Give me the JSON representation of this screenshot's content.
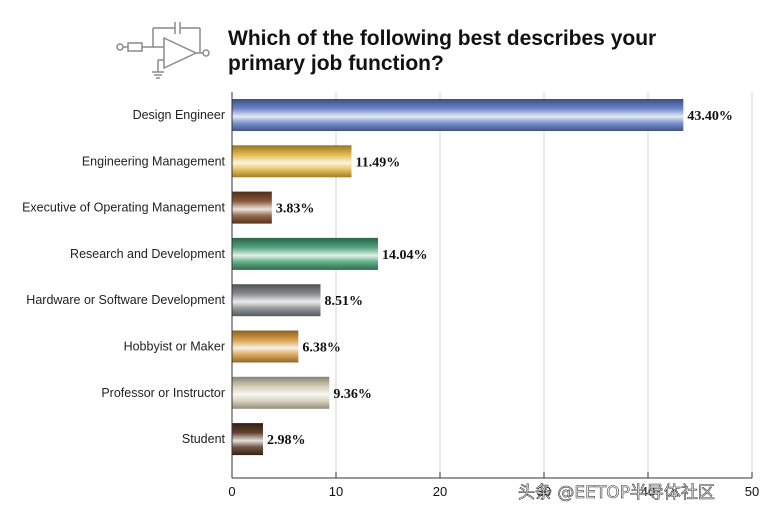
{
  "chart_data": {
    "type": "bar",
    "orientation": "horizontal",
    "title": "Which of the following best describes your primary job function?",
    "title_lines": [
      "Which of the following best describes your",
      "primary job function?"
    ],
    "categories": [
      "Design Engineer",
      "Engineering Management",
      "Executive of Operating Management",
      "Research and Development",
      "Hardware or Software Development",
      "Hobbyist or Maker",
      "Professor or Instructor",
      "Student"
    ],
    "values": [
      43.4,
      11.49,
      3.83,
      14.04,
      8.51,
      6.38,
      9.36,
      2.98
    ],
    "value_labels": [
      "43.40%",
      "11.49%",
      "3.83%",
      "14.04%",
      "8.51%",
      "6.38%",
      "9.36%",
      "2.98%"
    ],
    "bar_colors": [
      "#5b78c4",
      "#e3b53a",
      "#7a4524",
      "#3f9a6c",
      "#7a7f82",
      "#d4953a",
      "#cfc8b0",
      "#4e2d18"
    ],
    "xlim": [
      0,
      50
    ],
    "xticks": [
      0,
      10,
      20,
      30,
      40,
      50
    ],
    "xtick_labels": [
      "0",
      "10",
      "20",
      "30",
      "40",
      "50"
    ],
    "grid": true,
    "xlabel": "",
    "ylabel": "",
    "legend": "none"
  },
  "watermark": "头条 @EETOP半导体社区",
  "logo": "op-amp-circuit-icon"
}
